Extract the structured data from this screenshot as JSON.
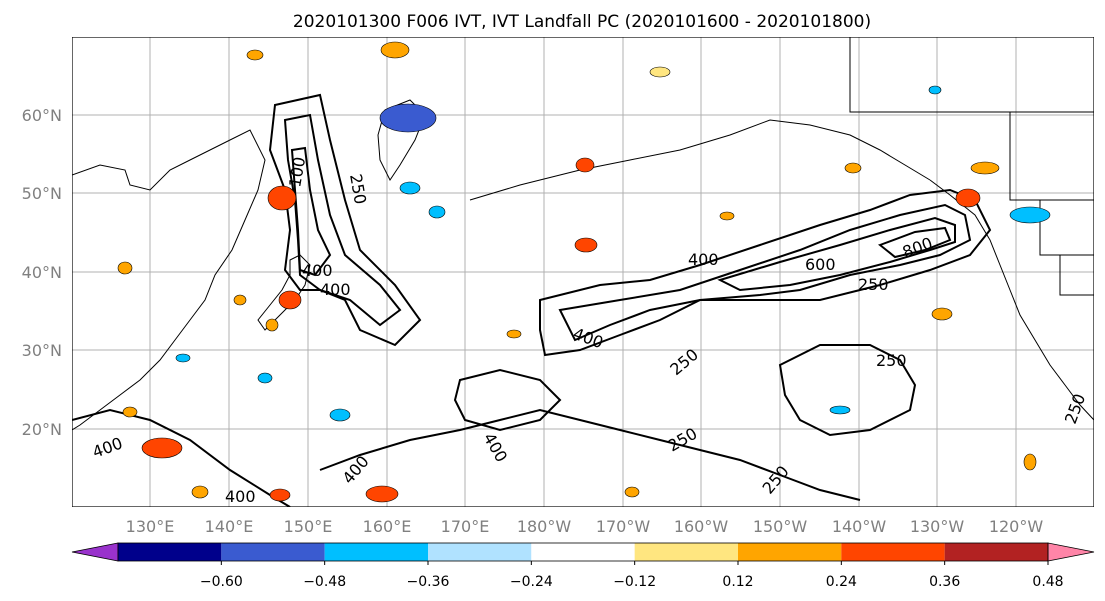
{
  "title": "2020101300 F006 IVT, IVT Landfall PC (2020101600 - 2020101800)",
  "map": {
    "lat_labels": [
      "60°N",
      "50°N",
      "40°N",
      "30°N",
      "20°N"
    ],
    "lon_labels": [
      "130°E",
      "140°E",
      "150°E",
      "160°E",
      "170°E",
      "180°W",
      "170°W",
      "160°W",
      "150°W",
      "140°W",
      "130°W",
      "120°W"
    ],
    "contour_labels": [
      "100",
      "250",
      "400",
      "400",
      "400",
      "600",
      "800",
      "250",
      "400",
      "250",
      "250",
      "250",
      "250",
      "400",
      "400",
      "400",
      "400",
      "250"
    ]
  },
  "colorbar": {
    "colors": [
      "#9932cc",
      "#00008b",
      "#3a5bd0",
      "#00bfff",
      "#b0e2ff",
      "#ffffff",
      "#ffe680",
      "#ffa500",
      "#ff4500",
      "#b22222",
      "#ff85a8"
    ],
    "tick_labels": [
      "−0.60",
      "−0.48",
      "−0.36",
      "−0.24",
      "−0.12",
      "0.12",
      "0.24",
      "0.36",
      "0.48",
      "0.60"
    ]
  }
}
